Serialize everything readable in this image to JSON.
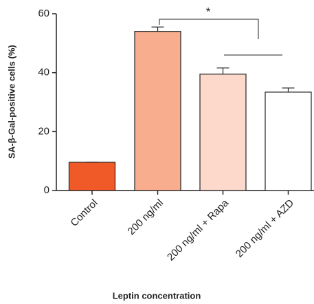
{
  "chart_data": {
    "type": "bar",
    "categories": [
      "Control",
      "200 ng/ml",
      "200 ng/ml + Rapa",
      "200 ng/ml + AZD"
    ],
    "values": [
      9.6,
      54,
      39.5,
      33.4
    ],
    "errors": [
      0,
      1.5,
      2.1,
      1.4
    ],
    "colors": [
      "#f05a28",
      "#f9ad8f",
      "#fcd9cb",
      "#ffffff"
    ],
    "ylim": [
      0,
      60
    ],
    "yticks": [
      0,
      20,
      40,
      60
    ],
    "y_label": "SA-β-Gal-positive cells (%)",
    "x_label": "Leptin concentration",
    "significance": "*"
  }
}
